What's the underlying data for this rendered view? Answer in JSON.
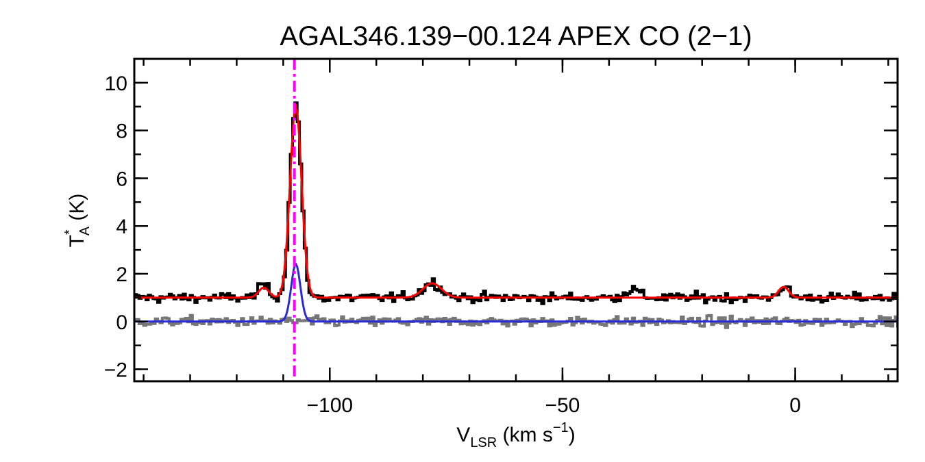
{
  "chart_data": {
    "type": "line",
    "title": "AGAL346.139−00.124  APEX CO (2−1)",
    "xlabel": {
      "main": "V",
      "sub": "LSR",
      "unit_open": " (km s",
      "sup": "−1",
      "unit_close": ")"
    },
    "ylabel": {
      "main": "T",
      "sup": "*",
      "sub": "A",
      "unit": " (K)"
    },
    "xlim": [
      -142,
      22
    ],
    "ylim": [
      -2.5,
      11
    ],
    "xticks": [
      -100,
      -50,
      0
    ],
    "xtick_labels": [
      "−100",
      "−50",
      "0"
    ],
    "yticks": [
      -2,
      0,
      2,
      4,
      6,
      8,
      10
    ],
    "ytick_labels": [
      "−2",
      "0",
      "2",
      "4",
      "6",
      "8",
      "10"
    ],
    "x_minor_step": 10,
    "y_minor_step": 1,
    "grid": false,
    "vline": {
      "x": -107.6,
      "color": "#ff00ff",
      "style": "dash-dot"
    },
    "series": [
      {
        "role": "observed-spectrum",
        "color": "#000000",
        "style": "step",
        "offset": 1.0,
        "components": [
          {
            "center": -114.2,
            "amp": 0.55,
            "sigma": 1.1
          },
          {
            "center": -107.3,
            "amp": 8.15,
            "sigma": 1.2
          },
          {
            "center": -78.0,
            "amp": 0.62,
            "sigma": 2.0
          },
          {
            "center": -35.0,
            "amp": 0.35,
            "sigma": 1.5
          },
          {
            "center": -2.5,
            "amp": 0.45,
            "sigma": 1.1
          }
        ],
        "noise_rms": 0.1
      },
      {
        "role": "fitted-model",
        "color": "#ff0000",
        "style": "line",
        "offset": 1.0,
        "components": [
          {
            "center": -114.2,
            "amp": 0.42,
            "sigma": 1.1
          },
          {
            "center": -107.3,
            "amp": 8.0,
            "sigma": 1.25
          },
          {
            "center": -78.0,
            "amp": 0.6,
            "sigma": 2.0
          },
          {
            "center": -2.5,
            "amp": 0.45,
            "sigma": 1.1
          }
        ]
      },
      {
        "role": "residual-spectrum",
        "color": "#777777",
        "style": "step",
        "offset": 0.0,
        "components": [],
        "noise_rms": 0.1
      },
      {
        "role": "component-model",
        "color": "#2a2ad8",
        "style": "line",
        "offset": 0.0,
        "components": [
          {
            "center": -107.3,
            "amp": 2.4,
            "sigma": 1.0
          }
        ]
      }
    ]
  }
}
